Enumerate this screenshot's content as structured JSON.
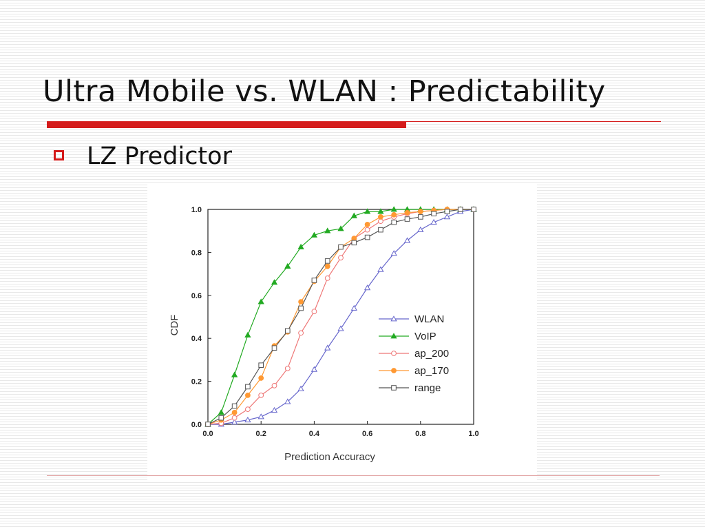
{
  "slide": {
    "title": "Ultra Mobile vs. WLAN : Predictability",
    "bullet": "LZ Predictor",
    "accent_color": "#d41a1a",
    "bullet_icon": "hollow-square-bullet-icon"
  },
  "chart_data": {
    "type": "line",
    "xlabel": "Prediction Accuracy",
    "ylabel": "CDF",
    "xlim": [
      0.0,
      1.0
    ],
    "ylim": [
      0.0,
      1.0
    ],
    "xticks": [
      "0.0",
      "0.2",
      "0.4",
      "0.6",
      "0.8",
      "1.0"
    ],
    "yticks": [
      "0.0",
      "0.2",
      "0.4",
      "0.6",
      "0.8",
      "1.0"
    ],
    "grid": false,
    "legend_position": "center-right",
    "series": [
      {
        "name": "WLAN",
        "color": "#6666cc",
        "marker": "triangle-open",
        "x": [
          0,
          0.05,
          0.1,
          0.15,
          0.2,
          0.25,
          0.3,
          0.35,
          0.4,
          0.45,
          0.5,
          0.55,
          0.6,
          0.65,
          0.7,
          0.75,
          0.8,
          0.85,
          0.9,
          0.95,
          1.0
        ],
        "y": [
          0,
          0.0,
          0.01,
          0.02,
          0.035,
          0.065,
          0.105,
          0.165,
          0.255,
          0.355,
          0.445,
          0.54,
          0.635,
          0.72,
          0.795,
          0.855,
          0.905,
          0.94,
          0.965,
          0.99,
          1.0
        ]
      },
      {
        "name": "VoIP",
        "color": "#22aa22",
        "marker": "triangle-filled",
        "x": [
          0,
          0.05,
          0.1,
          0.15,
          0.2,
          0.25,
          0.3,
          0.35,
          0.4,
          0.45,
          0.5,
          0.55,
          0.6,
          0.65,
          0.7,
          0.75,
          0.8,
          0.85,
          0.9,
          0.95,
          1.0
        ],
        "y": [
          0,
          0.055,
          0.23,
          0.415,
          0.57,
          0.66,
          0.735,
          0.825,
          0.88,
          0.9,
          0.91,
          0.97,
          0.99,
          0.99,
          1.0,
          1.0,
          1.0,
          1.0,
          1.0,
          1.0,
          1.0
        ]
      },
      {
        "name": "ap_200",
        "color": "#ee7777",
        "marker": "circle-open",
        "x": [
          0,
          0.05,
          0.1,
          0.15,
          0.2,
          0.25,
          0.3,
          0.35,
          0.4,
          0.45,
          0.5,
          0.55,
          0.6,
          0.65,
          0.7,
          0.75,
          0.8,
          0.85,
          0.9,
          0.95,
          1.0
        ],
        "y": [
          0,
          0.005,
          0.03,
          0.07,
          0.135,
          0.18,
          0.26,
          0.425,
          0.525,
          0.68,
          0.775,
          0.865,
          0.905,
          0.945,
          0.965,
          0.98,
          0.99,
          0.995,
          1.0,
          1.0,
          1.0
        ]
      },
      {
        "name": "ap_170",
        "color": "#ff9933",
        "marker": "circle-filled",
        "x": [
          0,
          0.05,
          0.1,
          0.15,
          0.2,
          0.25,
          0.3,
          0.35,
          0.4,
          0.45,
          0.5,
          0.55,
          0.6,
          0.65,
          0.7,
          0.75,
          0.8,
          0.85,
          0.9,
          0.95,
          1.0
        ],
        "y": [
          0,
          0.02,
          0.055,
          0.135,
          0.215,
          0.365,
          0.43,
          0.57,
          0.665,
          0.735,
          0.825,
          0.865,
          0.93,
          0.965,
          0.975,
          0.985,
          0.99,
          0.995,
          1.0,
          1.0,
          1.0
        ]
      },
      {
        "name": "range",
        "color": "#555555",
        "marker": "square-open",
        "x": [
          0,
          0.05,
          0.1,
          0.15,
          0.2,
          0.25,
          0.3,
          0.35,
          0.4,
          0.45,
          0.5,
          0.55,
          0.6,
          0.65,
          0.7,
          0.75,
          0.8,
          0.85,
          0.9,
          0.95,
          1.0
        ],
        "y": [
          0,
          0.03,
          0.085,
          0.175,
          0.275,
          0.355,
          0.435,
          0.54,
          0.67,
          0.76,
          0.825,
          0.845,
          0.87,
          0.905,
          0.94,
          0.955,
          0.965,
          0.98,
          0.99,
          1.0,
          1.0
        ]
      }
    ]
  }
}
